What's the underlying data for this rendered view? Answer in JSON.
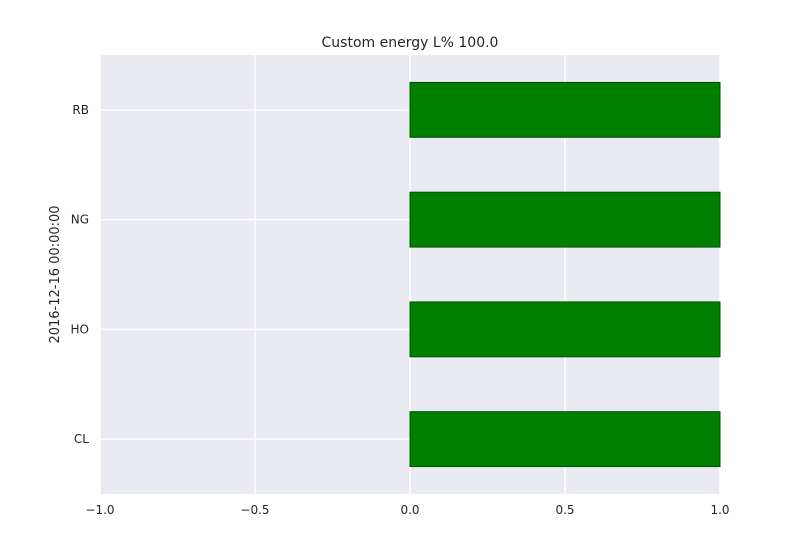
{
  "chart_data": {
    "type": "bar",
    "orientation": "horizontal",
    "title": "Custom energy L% 100.0",
    "xlabel": "",
    "ylabel": "2016-12-16 00:00:00",
    "categories": [
      "CL",
      "HO",
      "NG",
      "RB"
    ],
    "values": [
      1.0,
      1.0,
      1.0,
      1.0
    ],
    "xlim": [
      -1.0,
      1.0
    ],
    "xticks": [
      -1.0,
      -0.5,
      0.0,
      0.5,
      1.0
    ],
    "xtick_labels": [
      "−1.0",
      "−0.5",
      "0.0",
      "0.5",
      "1.0"
    ],
    "grid": true,
    "bar_color": "#008000",
    "bar_edge_color": "#004d00",
    "background_color": "#eaeaf2",
    "grid_color": "#ffffff"
  }
}
